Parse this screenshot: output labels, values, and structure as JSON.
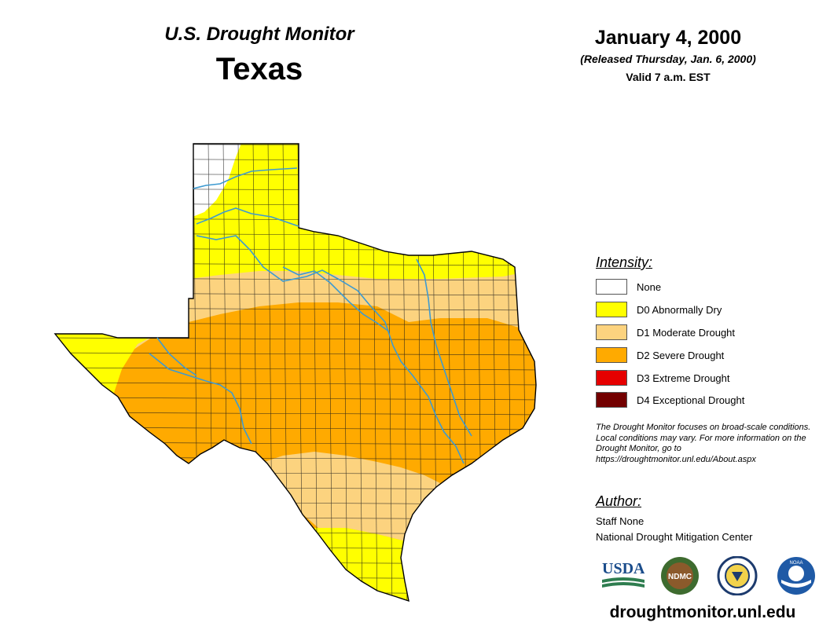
{
  "header": {
    "product": "U.S. Drought Monitor",
    "region": "Texas",
    "date": "January 4, 2000",
    "released": "(Released Thursday, Jan. 6, 2000)",
    "valid": "Valid 7 a.m. EST"
  },
  "legend": {
    "heading": "Intensity:",
    "items": [
      {
        "label": "None",
        "color": "#ffffff"
      },
      {
        "label": "D0 Abnormally Dry",
        "color": "#ffff00"
      },
      {
        "label": "D1 Moderate Drought",
        "color": "#fcd37f"
      },
      {
        "label": "D2 Severe Drought",
        "color": "#ffaa00"
      },
      {
        "label": "D3 Extreme Drought",
        "color": "#e60000"
      },
      {
        "label": "D4 Exceptional Drought",
        "color": "#730000"
      }
    ]
  },
  "note": "The Drought Monitor focuses on broad-scale conditions. Local conditions may vary. For more information on the Drought Monitor, go to https://droughtmonitor.unl.edu/About.aspx",
  "author": {
    "heading": "Author:",
    "name": "Staff None",
    "organization": "National Drought Mitigation Center"
  },
  "logos": {
    "usda": "USDA",
    "ndmc": "NDMC",
    "noaa": "NOAA"
  },
  "footer_url": "droughtmonitor.unl.edu",
  "colors": {
    "river": "#3d9ad1",
    "county_line": "#1a1a1a"
  }
}
